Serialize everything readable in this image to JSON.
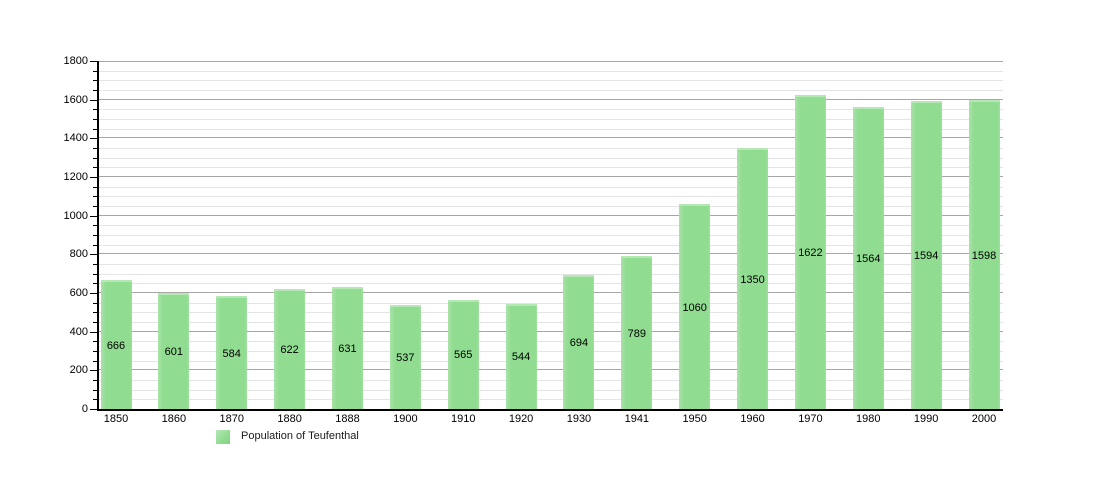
{
  "chart_data": {
    "type": "bar",
    "title": "",
    "xlabel": "",
    "ylabel": "",
    "categories": [
      "1850",
      "1860",
      "1870",
      "1880",
      "1888",
      "1900",
      "1910",
      "1920",
      "1930",
      "1941",
      "1950",
      "1960",
      "1970",
      "1980",
      "1990",
      "2000"
    ],
    "values": [
      666,
      601,
      584,
      622,
      631,
      537,
      565,
      544,
      694,
      789,
      1060,
      1350,
      1622,
      1564,
      1594,
      1598
    ],
    "series_name": "Population of Teufenthal",
    "ylim": [
      0,
      1800
    ],
    "y_major_step": 200,
    "y_minor_step": 50,
    "y_tick_labels": [
      "0",
      "200",
      "400",
      "600",
      "800",
      "1000",
      "1200",
      "1400",
      "1600",
      "1800"
    ],
    "grid": "on",
    "bar_value_labels_visible": true,
    "legend_position": "bottom-left"
  },
  "legend": {
    "label": "Population of Teufenthal"
  },
  "colors": {
    "bar_fill": "#90dc90",
    "bar_highlight": "#b6e8b6",
    "grid_major": "#a6a6a6",
    "grid_minor": "#e4e4e4",
    "axis": "#000000",
    "text": "#000000",
    "background": "#ffffff"
  }
}
